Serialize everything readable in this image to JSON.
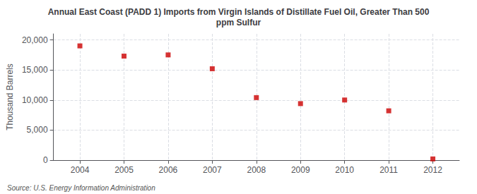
{
  "chart_data": {
    "type": "scatter",
    "title": "Annual East Coast (PADD 1) Imports from Virgin Islands of Distillate Fuel Oil, Greater Than 500\nppm Sulfur",
    "ylabel": "Thousand Barrels",
    "annotation": "Source: U.S. Energy Information Administration",
    "x": [
      2004,
      2005,
      2006,
      2007,
      2008,
      2009,
      2010,
      2011,
      2012
    ],
    "values": [
      19000,
      17300,
      17500,
      15200,
      10400,
      9400,
      10000,
      8200,
      200
    ],
    "color": "#cc0000",
    "marker": "square",
    "xlim": [
      2003.4,
      2012.6
    ],
    "xticks": [
      2004,
      2005,
      2006,
      2007,
      2008,
      2009,
      2010,
      2011,
      2012
    ],
    "ylim": [
      0,
      21000
    ],
    "yticks": [
      0,
      {
        "value": 5000,
        "label": "5,000"
      },
      {
        "value": 10000,
        "label": "10,000"
      },
      {
        "value": 15000,
        "label": "15,000"
      },
      {
        "value": 20000,
        "label": "20,000"
      }
    ],
    "grid": true
  }
}
